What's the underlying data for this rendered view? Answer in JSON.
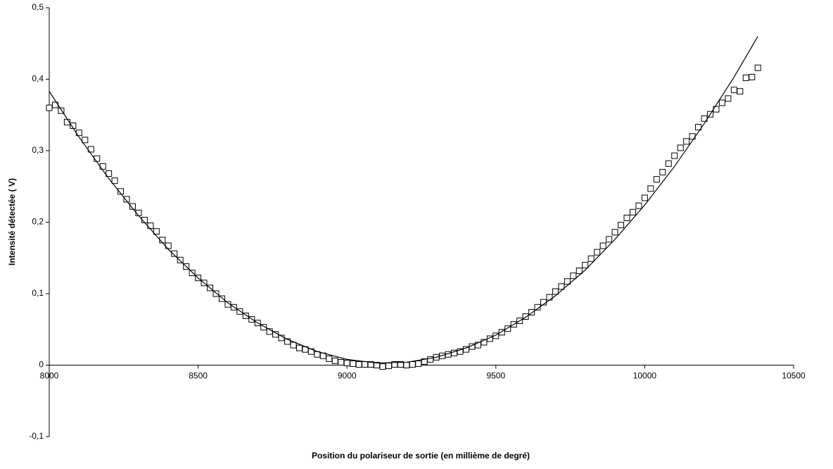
{
  "chart_data": {
    "type": "scatter",
    "xlabel": "Position du polariseur de sortie (en millième de degré)",
    "ylabel": "Intensité détectée ( V)",
    "xlim": [
      8000,
      10500
    ],
    "xticks": [
      8000,
      8500,
      9000,
      9500,
      10000,
      10500
    ],
    "ylim": [
      -0.1,
      0.5
    ],
    "yticks": [
      {
        "value": -0.1,
        "label": "-0,1"
      },
      0,
      {
        "value": 0.1,
        "label": "0,1"
      },
      {
        "value": 0.2,
        "label": "0,2"
      },
      {
        "value": 0.3,
        "label": "0,3"
      },
      {
        "value": 0.4,
        "label": "0,4"
      },
      {
        "value": 0.5,
        "label": "0,5"
      }
    ],
    "grid": false,
    "series": [
      {
        "marker": "square",
        "color": "#000000",
        "x": [
          8000,
          8020,
          8040,
          8060,
          8080,
          8100,
          8120,
          8140,
          8160,
          8180,
          8200,
          8220,
          8240,
          8260,
          8280,
          8300,
          8320,
          8340,
          8360,
          8380,
          8400,
          8420,
          8440,
          8460,
          8480,
          8500,
          8520,
          8540,
          8560,
          8580,
          8600,
          8620,
          8640,
          8660,
          8680,
          8700,
          8720,
          8740,
          8760,
          8780,
          8800,
          8820,
          8840,
          8860,
          8880,
          8900,
          8920,
          8940,
          8960,
          8980,
          9000,
          9020,
          9040,
          9060,
          9080,
          9100,
          9120,
          9140,
          9160,
          9180,
          9200,
          9220,
          9240,
          9260,
          9280,
          9300,
          9320,
          9340,
          9360,
          9380,
          9400,
          9420,
          9440,
          9460,
          9480,
          9500,
          9520,
          9540,
          9560,
          9580,
          9600,
          9620,
          9640,
          9660,
          9680,
          9700,
          9720,
          9740,
          9760,
          9780,
          9800,
          9820,
          9840,
          9860,
          9880,
          9900,
          9920,
          9940,
          9960,
          9980,
          10000,
          10020,
          10040,
          10060,
          10080,
          10100,
          10120,
          10140,
          10160,
          10180,
          10200,
          10220,
          10240,
          10260,
          10280,
          10300,
          10320,
          10340,
          10360,
          10380
        ],
        "values": [
          0.36,
          0.364,
          0.356,
          0.34,
          0.335,
          0.325,
          0.315,
          0.302,
          0.289,
          0.278,
          0.268,
          0.258,
          0.243,
          0.232,
          0.222,
          0.213,
          0.203,
          0.195,
          0.187,
          0.175,
          0.167,
          0.156,
          0.147,
          0.138,
          0.129,
          0.122,
          0.115,
          0.108,
          0.1,
          0.093,
          0.085,
          0.081,
          0.075,
          0.069,
          0.064,
          0.059,
          0.053,
          0.047,
          0.043,
          0.038,
          0.033,
          0.028,
          0.024,
          0.022,
          0.019,
          0.015,
          0.013,
          0.009,
          0.006,
          0.004,
          0.003,
          0.002,
          0.001,
          0.001,
          0.001,
          0.0,
          -0.002,
          -0.001,
          0.001,
          0.001,
          0.0,
          0.001,
          0.002,
          0.005,
          0.008,
          0.011,
          0.013,
          0.015,
          0.017,
          0.019,
          0.022,
          0.026,
          0.028,
          0.032,
          0.037,
          0.041,
          0.046,
          0.051,
          0.057,
          0.062,
          0.068,
          0.074,
          0.081,
          0.088,
          0.095,
          0.103,
          0.11,
          0.117,
          0.125,
          0.132,
          0.14,
          0.149,
          0.158,
          0.167,
          0.176,
          0.186,
          0.196,
          0.206,
          0.214,
          0.223,
          0.234,
          0.247,
          0.26,
          0.27,
          0.282,
          0.293,
          0.304,
          0.313,
          0.32,
          0.333,
          0.345,
          0.351,
          0.358,
          0.367,
          0.373,
          0.385,
          0.383,
          0.402,
          0.403,
          0.416
        ]
      },
      {
        "line": true,
        "color": "#000000",
        "x": [
          8000,
          8100,
          8200,
          8300,
          8400,
          8500,
          8600,
          8700,
          8800,
          8900,
          9000,
          9100,
          9200,
          9300,
          9400,
          9500,
          9600,
          9700,
          9800,
          9900,
          10000,
          10100,
          10200,
          10300,
          10380
        ],
        "values": [
          0.383,
          0.319,
          0.261,
          0.209,
          0.162,
          0.122,
          0.087,
          0.059,
          0.036,
          0.019,
          0.008,
          0.003,
          0.004,
          0.011,
          0.024,
          0.042,
          0.067,
          0.097,
          0.133,
          0.176,
          0.224,
          0.278,
          0.338,
          0.403,
          0.46
        ]
      }
    ]
  }
}
